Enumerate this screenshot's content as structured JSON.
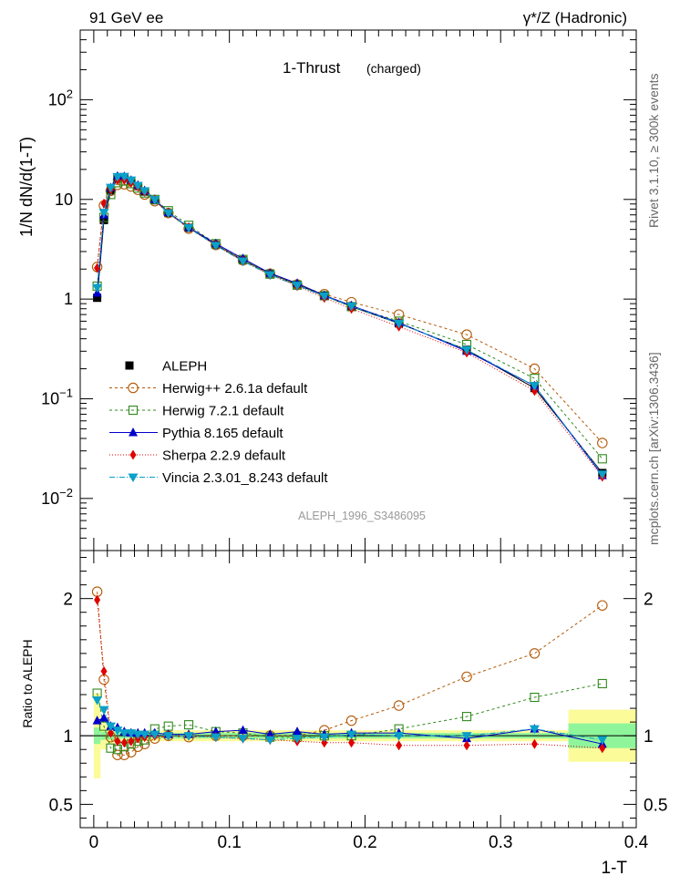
{
  "header": {
    "energy": "91 GeV ee",
    "process": "γ*/Z (Hadronic)",
    "title": "1-Thrust",
    "subtitle": "(charged)",
    "analysis": "ALEPH_1996_S3486095",
    "side_top": "Rivet 3.1.10, ≥ 300k events",
    "side_bottom": "mcplots.cern.ch [arXiv:1306.3436]"
  },
  "chart_data": [
    {
      "name": "main",
      "type": "line",
      "yscale": "log",
      "ylabel": "1/N dN/d(1-T)",
      "xlabel": "1-T",
      "xlim": [
        -0.01,
        0.4
      ],
      "ylim": [
        0.003,
        500
      ],
      "yticks": [
        {
          "v": 0.01,
          "base": "10",
          "exp": "−2"
        },
        {
          "v": 0.1,
          "base": "10",
          "exp": "−1"
        },
        {
          "v": 1,
          "base": "1",
          "exp": ""
        },
        {
          "v": 10,
          "base": "10",
          "exp": ""
        },
        {
          "v": 100,
          "base": "10",
          "exp": "2"
        }
      ],
      "x": [
        0.0025,
        0.0075,
        0.0125,
        0.0175,
        0.0225,
        0.0275,
        0.0325,
        0.0375,
        0.045,
        0.055,
        0.07,
        0.09,
        0.11,
        0.13,
        0.15,
        0.17,
        0.19,
        0.225,
        0.275,
        0.325,
        0.375
      ],
      "series": [
        {
          "name": "ALEPH",
          "values": [
            1.03,
            6.2,
            12.3,
            16.2,
            16.6,
            15.3,
            13.6,
            12.0,
            9.8,
            7.3,
            5.2,
            3.5,
            2.45,
            1.8,
            1.4,
            1.08,
            0.84,
            0.57,
            0.31,
            0.128,
            0.018
          ]
        },
        {
          "name": "Herwig++ 2.6.1a default",
          "values": [
            2.1,
            8.7,
            12.2,
            14.0,
            14.2,
            13.5,
            12.5,
            11.2,
            9.6,
            7.3,
            5.1,
            3.5,
            2.45,
            1.8,
            1.4,
            1.12,
            0.93,
            0.7,
            0.44,
            0.2,
            0.036
          ]
        },
        {
          "name": "Herwig 7.2.1 default",
          "values": [
            1.35,
            6.6,
            11.2,
            14.7,
            15.3,
            14.4,
            13.0,
            11.6,
            10.0,
            7.7,
            5.5,
            3.6,
            2.5,
            1.78,
            1.38,
            1.08,
            0.84,
            0.6,
            0.35,
            0.16,
            0.025
          ]
        },
        {
          "name": "Pythia 8.165 default",
          "values": [
            1.15,
            7.0,
            13.1,
            17.1,
            17.0,
            15.6,
            13.9,
            12.3,
            10.0,
            7.4,
            5.25,
            3.6,
            2.55,
            1.82,
            1.44,
            1.09,
            0.86,
            0.58,
            0.3,
            0.135,
            0.017
          ]
        },
        {
          "name": "Sherpa 2.2.9 default",
          "values": [
            2.05,
            9.1,
            12.6,
            15.6,
            15.7,
            14.7,
            13.4,
            11.9,
            9.9,
            7.3,
            5.2,
            3.45,
            2.4,
            1.75,
            1.35,
            1.03,
            0.8,
            0.53,
            0.29,
            0.12,
            0.0165
          ]
        },
        {
          "name": "Vincia 2.3.01_8.243 default",
          "values": [
            1.3,
            7.4,
            13.2,
            16.9,
            17.0,
            15.6,
            13.8,
            12.2,
            9.9,
            7.3,
            5.2,
            3.45,
            2.4,
            1.75,
            1.37,
            1.07,
            0.85,
            0.57,
            0.31,
            0.135,
            0.0175
          ]
        }
      ]
    },
    {
      "name": "ratio",
      "type": "line",
      "ylabel": "Ratio to ALEPH",
      "xlabel": "1-T",
      "xlim": [
        -0.01,
        0.4
      ],
      "ylim": [
        0.33,
        2.35
      ],
      "yticks": [
        0.5,
        1,
        2
      ],
      "xticks": [
        0,
        0.1,
        0.2,
        0.3,
        0.4
      ],
      "x": [
        0.0025,
        0.0075,
        0.0125,
        0.0175,
        0.0225,
        0.0275,
        0.0325,
        0.0375,
        0.045,
        0.055,
        0.07,
        0.09,
        0.11,
        0.13,
        0.15,
        0.17,
        0.19,
        0.225,
        0.275,
        0.325,
        0.375
      ],
      "x_edges": [
        0,
        0.005,
        0.01,
        0.015,
        0.02,
        0.025,
        0.03,
        0.035,
        0.04,
        0.05,
        0.06,
        0.08,
        0.1,
        0.12,
        0.14,
        0.16,
        0.18,
        0.2,
        0.25,
        0.3,
        0.35,
        0.4
      ],
      "band_inner": [
        0.06,
        0.03,
        0.03,
        0.03,
        0.02,
        0.02,
        0.02,
        0.02,
        0.02,
        0.02,
        0.02,
        0.02,
        0.02,
        0.02,
        0.02,
        0.02,
        0.02,
        0.02,
        0.02,
        0.02,
        0.09
      ],
      "band_outer": [
        0.31,
        0.1,
        0.06,
        0.05,
        0.04,
        0.04,
        0.04,
        0.04,
        0.04,
        0.04,
        0.04,
        0.04,
        0.04,
        0.04,
        0.04,
        0.04,
        0.04,
        0.04,
        0.04,
        0.04,
        0.19
      ],
      "series": [
        {
          "name": "Herwig++ 2.6.1a default",
          "values": [
            2.05,
            1.41,
            0.99,
            0.86,
            0.86,
            0.88,
            0.92,
            0.94,
            0.98,
            1.0,
            0.99,
            1.0,
            1.0,
            1.0,
            1.0,
            1.04,
            1.11,
            1.22,
            1.43,
            1.6,
            1.95
          ]
        },
        {
          "name": "Herwig 7.2.1 default",
          "values": [
            1.31,
            1.07,
            0.91,
            0.9,
            0.92,
            0.94,
            0.96,
            0.97,
            1.05,
            1.07,
            1.08,
            1.03,
            1.02,
            0.99,
            0.99,
            1.0,
            1.0,
            1.05,
            1.14,
            1.28,
            1.38
          ]
        },
        {
          "name": "Pythia 8.165 default",
          "values": [
            1.11,
            1.13,
            1.07,
            1.06,
            1.03,
            1.02,
            1.02,
            1.02,
            1.02,
            1.01,
            1.01,
            1.03,
            1.04,
            1.01,
            1.03,
            1.01,
            1.02,
            1.02,
            0.98,
            1.05,
            0.94
          ]
        },
        {
          "name": "Sherpa 2.2.9 default",
          "values": [
            1.99,
            1.47,
            1.02,
            0.96,
            0.95,
            0.96,
            0.98,
            0.99,
            1.0,
            1.0,
            1.0,
            0.99,
            0.98,
            0.97,
            0.96,
            0.95,
            0.95,
            0.93,
            0.93,
            0.94,
            0.91
          ]
        },
        {
          "name": "Vincia 2.3.01_8.243 default",
          "values": [
            1.26,
            1.19,
            1.07,
            1.04,
            1.02,
            1.02,
            1.01,
            1.01,
            1.01,
            1.0,
            1.0,
            0.99,
            0.98,
            0.97,
            0.98,
            0.99,
            1.01,
            1.0,
            1.0,
            1.05,
            0.97
          ]
        }
      ]
    }
  ],
  "series_style": [
    {
      "name": "ALEPH",
      "color": "#000000",
      "marker": "square-filled",
      "dash": ""
    },
    {
      "name": "Herwig++ 2.6.1a default",
      "color": "#b35806",
      "marker": "circle-open",
      "dash": "3,3"
    },
    {
      "name": "Herwig 7.2.1 default",
      "color": "#2f8a1c",
      "marker": "square-open",
      "dash": "3,3"
    },
    {
      "name": "Pythia 8.165 default",
      "color": "#0000cc",
      "marker": "triangle-up",
      "dash": ""
    },
    {
      "name": "Sherpa 2.2.9 default",
      "color": "#e00000",
      "marker": "diamond",
      "dash": "1,2"
    },
    {
      "name": "Vincia 2.3.01_8.243 default",
      "color": "#0aa0c8",
      "marker": "triangle-down",
      "dash": "6,2,1,2"
    }
  ],
  "band_colors": {
    "inner": "#8ff59a",
    "outer": "#fbfb9a"
  }
}
